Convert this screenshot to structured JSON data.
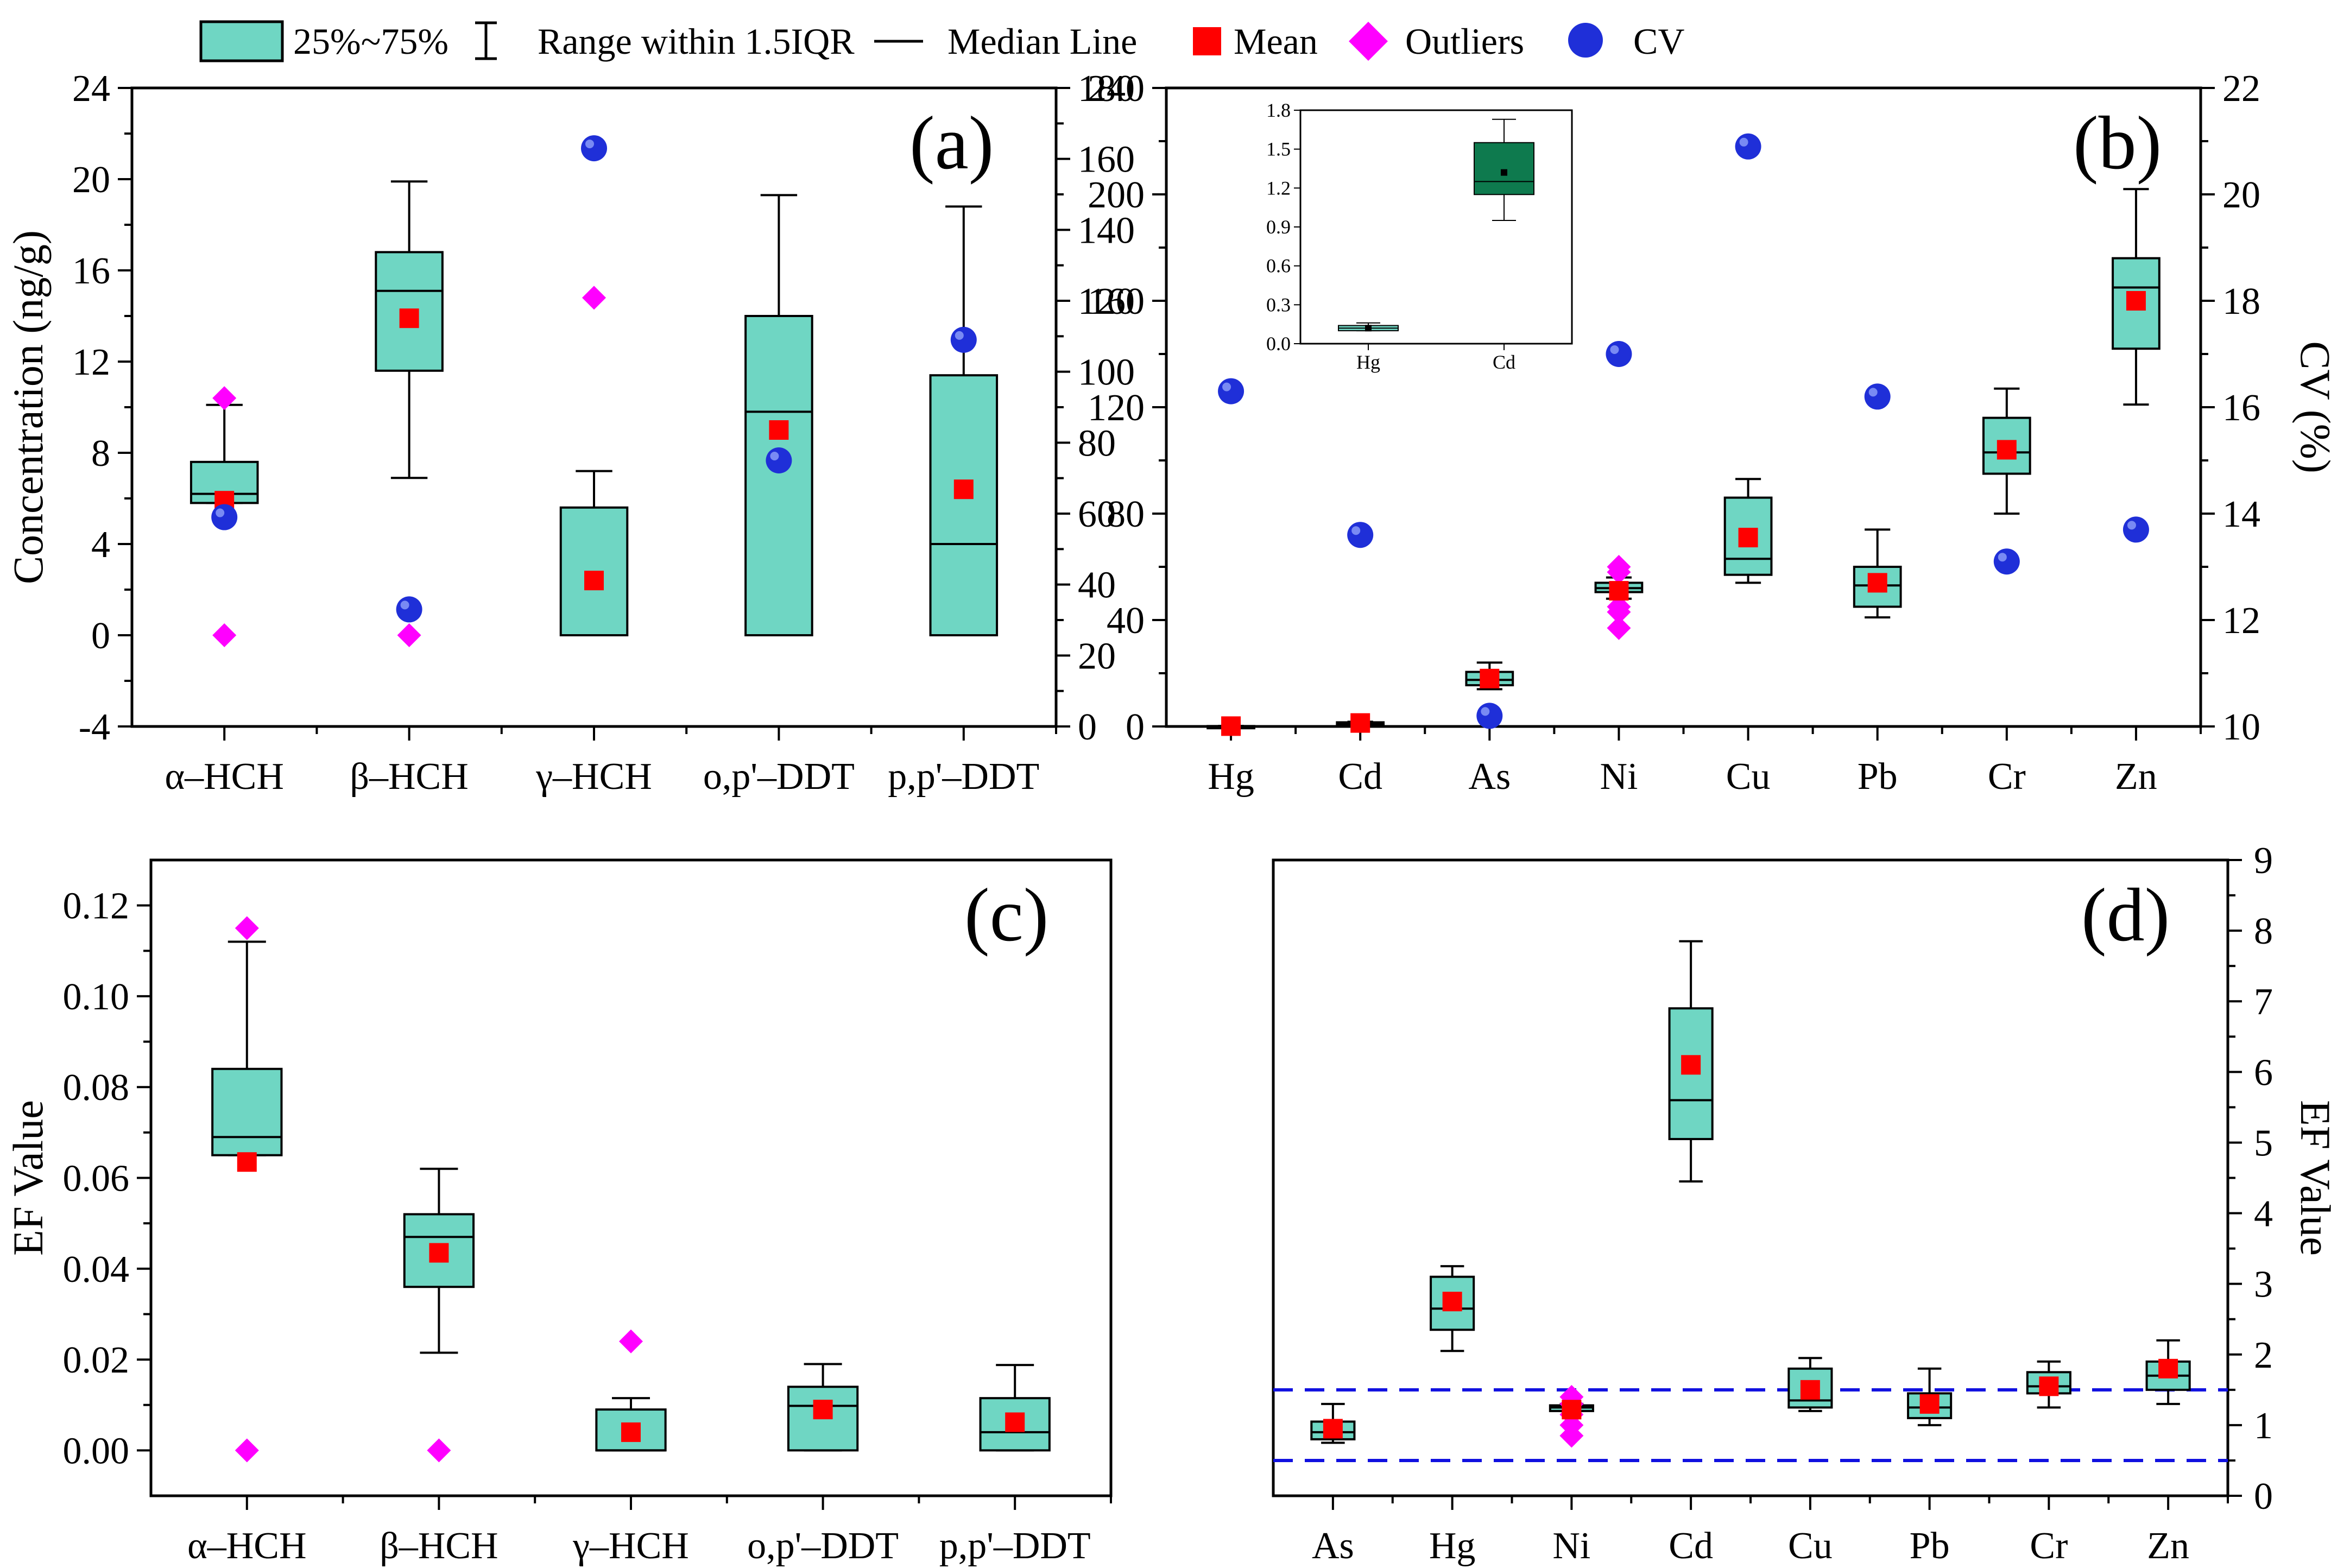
{
  "legend": {
    "box": "25%~75%",
    "range": "Range within 1.5IQR",
    "median": "Median Line",
    "mean": "Mean",
    "outliers": "Outliers",
    "cv": "CV"
  },
  "colors": {
    "box_fill": "#6fd6c3",
    "inset_box_fill": "#0e7a4e",
    "mean": "#ff0000",
    "outlier": "#ff00ff",
    "cv": "#1f2fd8",
    "threshold_line": "#1010e0"
  },
  "chart_data": [
    {
      "panel": "(a)",
      "type": "box",
      "ylabel": "Concentration (ng/g)",
      "ylim": [
        -4,
        24
      ],
      "yticks": [
        -4,
        0,
        4,
        8,
        12,
        16,
        20,
        24
      ],
      "y2lim": [
        0,
        180
      ],
      "y2ticks": [
        0,
        20,
        40,
        60,
        80,
        100,
        120,
        140,
        160,
        180
      ],
      "categories": [
        "α–HCH",
        "β–HCH",
        "γ–HCH",
        "o,p'–DDT",
        "p,p'–DDT"
      ],
      "boxes": [
        {
          "wmin": 5.8,
          "q1": 5.8,
          "median": 6.2,
          "q3": 7.6,
          "wmax": 10.1,
          "mean": 5.9,
          "outliers": [
            10.4,
            0
          ],
          "cv": 59
        },
        {
          "wmin": 6.9,
          "q1": 11.6,
          "median": 15.1,
          "q3": 16.8,
          "wmax": 19.9,
          "mean": 13.9,
          "outliers": [
            0
          ],
          "cv": 33
        },
        {
          "wmin": 0,
          "q1": 0,
          "median": 0,
          "q3": 5.6,
          "wmax": 7.2,
          "mean": 2.4,
          "outliers": [
            14.8
          ],
          "cv": 163
        },
        {
          "wmin": 0,
          "q1": 0,
          "median": 9.8,
          "q3": 14.0,
          "wmax": 19.3,
          "mean": 9.0,
          "outliers": [],
          "cv": 75
        },
        {
          "wmin": 0,
          "q1": 0,
          "median": 4.0,
          "q3": 11.4,
          "wmax": 18.8,
          "mean": 6.4,
          "outliers": [],
          "cv": 109
        }
      ]
    },
    {
      "panel": "(b)",
      "type": "box",
      "ylim": [
        0,
        240
      ],
      "yticks": [
        0,
        40,
        80,
        120,
        160,
        200,
        240
      ],
      "y2label": "CV (%)",
      "y2lim": [
        10,
        22
      ],
      "y2ticks": [
        10,
        12,
        14,
        16,
        18,
        20,
        22
      ],
      "categories": [
        "Hg",
        "Cd",
        "As",
        "Ni",
        "Cu",
        "Pb",
        "Cr",
        "Zn"
      ],
      "boxes": [
        {
          "wmin": 0.1,
          "q1": 0.1,
          "median": 0.1,
          "q3": 0.15,
          "wmax": 0.2,
          "mean": 0.12,
          "outliers": [],
          "cv": 16.3
        },
        {
          "wmin": 0.9,
          "q1": 1.15,
          "median": 1.25,
          "q3": 1.55,
          "wmax": 1.75,
          "mean": 1.3,
          "outliers": [],
          "cv": 13.6
        },
        {
          "wmin": 14,
          "q1": 15.5,
          "median": 17.5,
          "q3": 20.5,
          "wmax": 24,
          "mean": 18,
          "outliers": [],
          "cv": 10.2
        },
        {
          "wmin": 48,
          "q1": 50.5,
          "median": 52,
          "q3": 54,
          "wmax": 56,
          "mean": 51,
          "outliers": [
            60,
            58,
            45,
            43,
            37
          ],
          "cv": 17.0
        },
        {
          "wmin": 54,
          "q1": 57,
          "median": 63,
          "q3": 86,
          "wmax": 93,
          "mean": 71,
          "outliers": [],
          "cv": 20.9
        },
        {
          "wmin": 41,
          "q1": 45,
          "median": 53,
          "q3": 60,
          "wmax": 74,
          "mean": 54,
          "outliers": [],
          "cv": 16.2
        },
        {
          "wmin": 80,
          "q1": 95,
          "median": 103,
          "q3": 116,
          "wmax": 127,
          "mean": 104,
          "outliers": [],
          "cv": 13.1
        },
        {
          "wmin": 121,
          "q1": 142,
          "median": 165,
          "q3": 176,
          "wmax": 202,
          "mean": 160,
          "outliers": [],
          "cv": 13.7
        }
      ],
      "inset": {
        "categories": [
          "Hg",
          "Cd"
        ],
        "ylim": [
          0.0,
          1.8
        ],
        "yticks": [
          "0.0",
          "0.3",
          "0.6",
          "0.9",
          "1.2",
          "1.5",
          "1.8"
        ],
        "boxes": [
          {
            "wmin": 0.1,
            "q1": 0.1,
            "median": 0.12,
            "q3": 0.14,
            "wmax": 0.16,
            "mean": 0.12
          },
          {
            "wmin": 0.95,
            "q1": 1.15,
            "median": 1.25,
            "q3": 1.55,
            "wmax": 1.73,
            "mean": 1.32
          }
        ]
      }
    },
    {
      "panel": "(c)",
      "type": "box",
      "ylabel": "EF Value",
      "ylim": [
        -0.01,
        0.13
      ],
      "yticks": [
        "0.00",
        "0.02",
        "0.04",
        "0.06",
        "0.08",
        "0.10",
        "0.12"
      ],
      "categories": [
        "α–HCH",
        "β–HCH",
        "γ–HCH",
        "o,p'–DDT",
        "p,p'–DDT"
      ],
      "boxes": [
        {
          "wmin": 0.065,
          "q1": 0.065,
          "median": 0.069,
          "q3": 0.084,
          "wmax": 0.112,
          "mean": 0.0635,
          "outliers": [
            0.115,
            0.0
          ]
        },
        {
          "wmin": 0.0215,
          "q1": 0.036,
          "median": 0.047,
          "q3": 0.052,
          "wmax": 0.062,
          "mean": 0.0435,
          "outliers": [
            0.0
          ]
        },
        {
          "wmin": 0.0,
          "q1": 0.0,
          "median": 0.0,
          "q3": 0.009,
          "wmax": 0.0115,
          "mean": 0.004,
          "outliers": [
            0.024
          ]
        },
        {
          "wmin": 0.0,
          "q1": 0.0,
          "median": 0.0098,
          "q3": 0.014,
          "wmax": 0.019,
          "mean": 0.009,
          "outliers": []
        },
        {
          "wmin": 0.0,
          "q1": 0.0,
          "median": 0.004,
          "q3": 0.0115,
          "wmax": 0.0188,
          "mean": 0.0062,
          "outliers": []
        }
      ]
    },
    {
      "panel": "(d)",
      "type": "box",
      "y2label": "EF Value",
      "ylim": [
        0,
        9
      ],
      "yticks": [
        0,
        1,
        2,
        3,
        4,
        5,
        6,
        7,
        8,
        9
      ],
      "thresholds": [
        0.5,
        1.5
      ],
      "categories": [
        "As",
        "Hg",
        "Ni",
        "Cd",
        "Cu",
        "Pb",
        "Cr",
        "Zn"
      ],
      "boxes": [
        {
          "wmin": 0.75,
          "q1": 0.8,
          "median": 0.9,
          "q3": 1.05,
          "wmax": 1.3,
          "mean": 0.95,
          "outliers": []
        },
        {
          "wmin": 2.05,
          "q1": 2.35,
          "median": 2.65,
          "q3": 3.1,
          "wmax": 3.25,
          "mean": 2.75,
          "outliers": []
        },
        {
          "wmin": 1.2,
          "q1": 1.2,
          "median": 1.25,
          "q3": 1.28,
          "wmax": 1.3,
          "mean": 1.22,
          "outliers": [
            1.4,
            1.3,
            1.15,
            1.0,
            0.85
          ]
        },
        {
          "wmin": 4.45,
          "q1": 5.05,
          "median": 5.6,
          "q3": 6.9,
          "wmax": 7.85,
          "mean": 6.1,
          "outliers": []
        },
        {
          "wmin": 1.2,
          "q1": 1.25,
          "median": 1.35,
          "q3": 1.8,
          "wmax": 1.95,
          "mean": 1.5,
          "outliers": []
        },
        {
          "wmin": 1.0,
          "q1": 1.1,
          "median": 1.25,
          "q3": 1.45,
          "wmax": 1.8,
          "mean": 1.3,
          "outliers": []
        },
        {
          "wmin": 1.25,
          "q1": 1.45,
          "median": 1.55,
          "q3": 1.75,
          "wmax": 1.9,
          "mean": 1.55,
          "outliers": []
        },
        {
          "wmin": 1.3,
          "q1": 1.5,
          "median": 1.7,
          "q3": 1.9,
          "wmax": 2.2,
          "mean": 1.8,
          "outliers": []
        }
      ]
    }
  ]
}
